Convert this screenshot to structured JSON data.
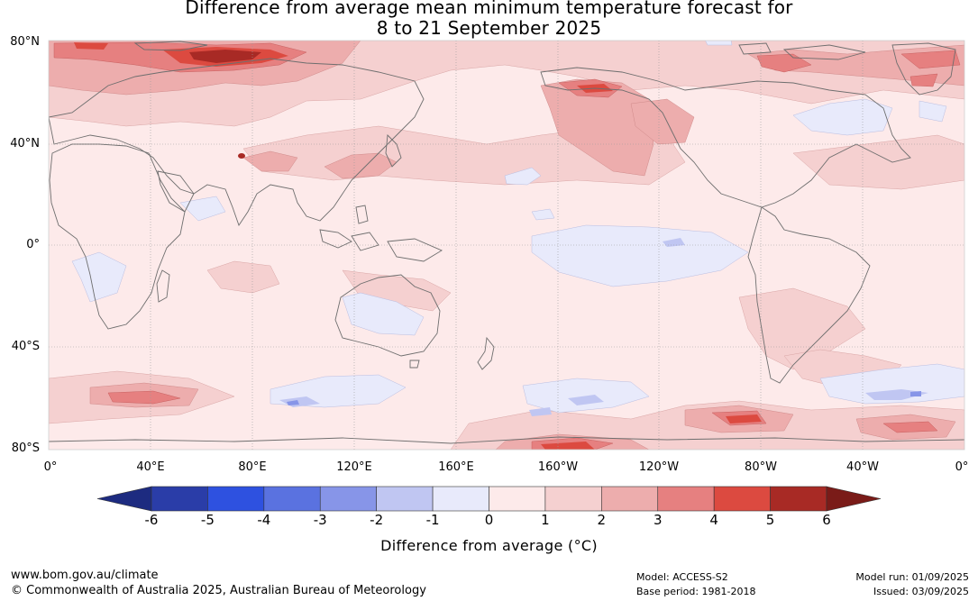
{
  "title": {
    "line1": "Difference from average mean minimum temperature forecast for",
    "line2": "8 to 21 September 2025"
  },
  "map": {
    "lat_labels": [
      "80°N",
      "40°N",
      "0°",
      "40°S",
      "80°S"
    ],
    "lon_labels": [
      "0°",
      "40°E",
      "80°E",
      "120°E",
      "160°E",
      "160°W",
      "120°W",
      "80°W",
      "40°W",
      "0°"
    ],
    "projection": "equirectangular",
    "grid": true
  },
  "colorbar": {
    "ticks": [
      "-6",
      "-5",
      "-4",
      "-3",
      "-2",
      "-1",
      "0",
      "1",
      "2",
      "3",
      "4",
      "5",
      "6"
    ],
    "colors": [
      "#2a3da8",
      "#2e51e0",
      "#5a72e0",
      "#8795e8",
      "#c0c6f2",
      "#e8eafb",
      "#fdeaea",
      "#f5d0d0",
      "#edadad",
      "#e68080",
      "#dc4a40",
      "#a82a25"
    ],
    "under_color": "#1d2b80",
    "over_color": "#7a1b18",
    "label": "Difference from average (°C)"
  },
  "footer": {
    "url": "www.bom.gov.au/climate",
    "copyright": "© Commonwealth of Australia 2025, Australian Bureau of Meteorology",
    "model": "Model: ACCESS-S2",
    "base_period": "Base period: 1981-2018",
    "model_run": "Model run: 01/09/2025",
    "issued": "Issued: 03/09/2025"
  }
}
